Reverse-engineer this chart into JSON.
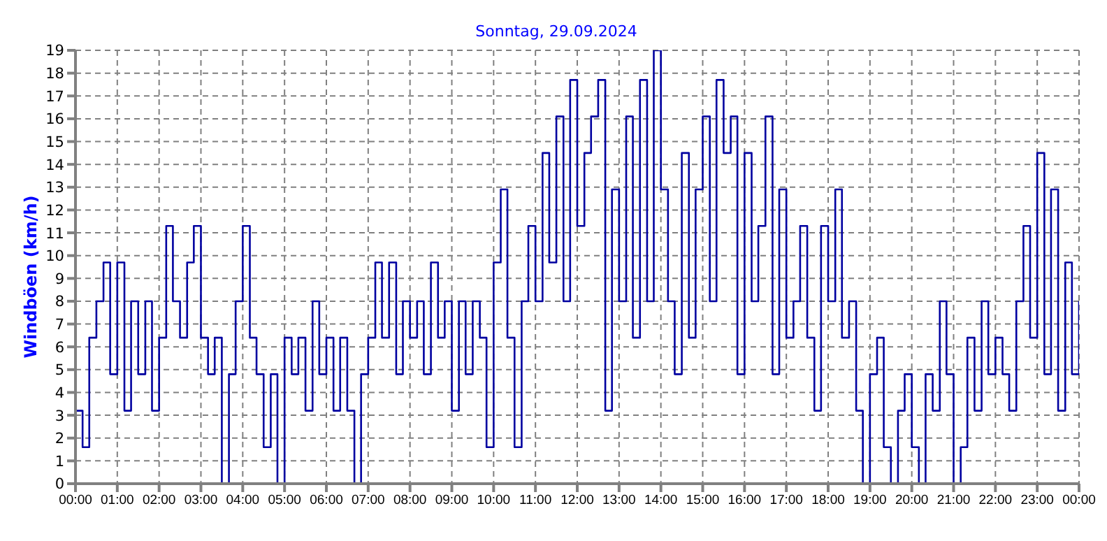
{
  "chart_data": {
    "type": "step",
    "title": "Sonntag, 29.09.2024",
    "ylabel": "Windböen (km/h)",
    "x": [
      0,
      0.17,
      0.33,
      0.5,
      0.67,
      0.83,
      1,
      1.17,
      1.33,
      1.5,
      1.67,
      1.83,
      2,
      2.17,
      2.33,
      2.5,
      2.67,
      2.83,
      3,
      3.17,
      3.33,
      3.5,
      3.67,
      3.83,
      4,
      4.17,
      4.33,
      4.5,
      4.67,
      4.83,
      5,
      5.17,
      5.33,
      5.5,
      5.67,
      5.83,
      6,
      6.17,
      6.33,
      6.5,
      6.67,
      6.83,
      7,
      7.17,
      7.33,
      7.5,
      7.67,
      7.83,
      8,
      8.17,
      8.33,
      8.5,
      8.67,
      8.83,
      9,
      9.17,
      9.33,
      9.5,
      9.67,
      9.83,
      10,
      10.17,
      10.33,
      10.5,
      10.67,
      10.83,
      11,
      11.17,
      11.33,
      11.5,
      11.67,
      11.83,
      12,
      12.17,
      12.33,
      12.5,
      12.67,
      12.83,
      13,
      13.17,
      13.33,
      13.5,
      13.67,
      13.83,
      14,
      14.17,
      14.33,
      14.5,
      14.67,
      14.83,
      15,
      15.17,
      15.33,
      15.5,
      15.67,
      15.83,
      16,
      16.17,
      16.33,
      16.5,
      16.67,
      16.83,
      17,
      17.17,
      17.33,
      17.5,
      17.67,
      17.83,
      18,
      18.17,
      18.33,
      18.5,
      18.67,
      18.83,
      19,
      19.17,
      19.33,
      19.5,
      19.67,
      19.83,
      20,
      20.17,
      20.33,
      20.5,
      20.67,
      20.83,
      21,
      21.17,
      21.33,
      21.5,
      21.67,
      21.83,
      22,
      22.17,
      22.33,
      22.5,
      22.67,
      22.83,
      23,
      23.17,
      23.33,
      23.5,
      23.67,
      23.83,
      24
    ],
    "series": [
      {
        "color": "#0000a0",
        "values": [
          3.2,
          1.6,
          6.4,
          8.0,
          9.7,
          4.8,
          9.7,
          3.2,
          8.0,
          4.8,
          8.0,
          3.2,
          6.4,
          11.3,
          8.0,
          6.4,
          9.7,
          11.3,
          6.4,
          4.8,
          6.4,
          0,
          4.8,
          8.0,
          11.3,
          6.4,
          4.8,
          1.6,
          4.8,
          0,
          6.4,
          4.8,
          6.4,
          3.2,
          8.0,
          4.8,
          6.4,
          3.2,
          6.4,
          3.2,
          0,
          4.8,
          6.4,
          9.7,
          6.4,
          9.7,
          4.8,
          8.0,
          6.4,
          8.0,
          4.8,
          9.7,
          6.4,
          8.0,
          3.2,
          8.0,
          4.8,
          8.0,
          6.4,
          1.6,
          9.7,
          12.9,
          6.4,
          1.6,
          8.0,
          11.3,
          8.0,
          14.5,
          9.7,
          16.1,
          8.0,
          17.7,
          11.3,
          14.5,
          16.1,
          17.7,
          3.2,
          12.9,
          8.0,
          16.1,
          6.4,
          17.7,
          8.0,
          19,
          12.9,
          8.0,
          4.8,
          14.5,
          6.4,
          12.9,
          16.1,
          8.0,
          17.7,
          14.5,
          16.1,
          4.8,
          14.5,
          8.0,
          11.3,
          16.1,
          4.8,
          12.9,
          6.4,
          8.0,
          11.3,
          6.4,
          3.2,
          11.3,
          8.0,
          12.9,
          6.4,
          8.0,
          3.2,
          0,
          4.8,
          6.4,
          1.6,
          0,
          3.2,
          4.8,
          1.6,
          0,
          4.8,
          3.2,
          8.0,
          4.8,
          0,
          1.6,
          6.4,
          3.2,
          8.0,
          4.8,
          6.4,
          4.8,
          3.2,
          8.0,
          11.3,
          6.4,
          14.5,
          4.8,
          12.9,
          3.2,
          9.7,
          4.8,
          8.0
        ]
      }
    ],
    "xlim": [
      0,
      24
    ],
    "xticks": [
      {
        "value": 0,
        "label": "00:00"
      },
      {
        "value": 1,
        "label": "01:00"
      },
      {
        "value": 2,
        "label": "02:00"
      },
      {
        "value": 3,
        "label": "03:00"
      },
      {
        "value": 4,
        "label": "04:00"
      },
      {
        "value": 5,
        "label": "05:00"
      },
      {
        "value": 6,
        "label": "06:00"
      },
      {
        "value": 7,
        "label": "07:00"
      },
      {
        "value": 8,
        "label": "08:00"
      },
      {
        "value": 9,
        "label": "09:00"
      },
      {
        "value": 10,
        "label": "10:00"
      },
      {
        "value": 11,
        "label": "11:00"
      },
      {
        "value": 12,
        "label": "12:00"
      },
      {
        "value": 13,
        "label": "13:00"
      },
      {
        "value": 14,
        "label": "14:00"
      },
      {
        "value": 15,
        "label": "15:00"
      },
      {
        "value": 16,
        "label": "16:00"
      },
      {
        "value": 17,
        "label": "17:00"
      },
      {
        "value": 18,
        "label": "18:00"
      },
      {
        "value": 19,
        "label": "19:00"
      },
      {
        "value": 20,
        "label": "20:00"
      },
      {
        "value": 21,
        "label": "21:00"
      },
      {
        "value": 22,
        "label": "22:00"
      },
      {
        "value": 23,
        "label": "23:00"
      },
      {
        "value": 24,
        "label": "00:00"
      }
    ],
    "ylim": [
      0,
      19
    ],
    "yticks": [
      0,
      1,
      2,
      3,
      4,
      5,
      6,
      7,
      8,
      9,
      10,
      11,
      12,
      13,
      14,
      15,
      16,
      17,
      18,
      19
    ],
    "grid": true,
    "line_style": "solid",
    "marker": "none"
  }
}
